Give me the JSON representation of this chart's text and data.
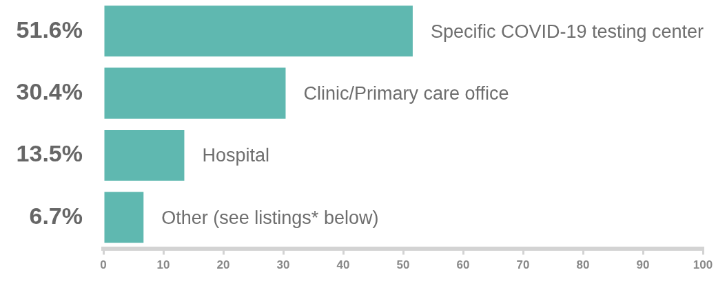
{
  "chart_data": {
    "type": "bar",
    "orientation": "horizontal",
    "categories": [
      "Specific COVID-19 testing center",
      "Clinic/Primary care office",
      "Hospital",
      "Other (see listings* below)"
    ],
    "values": [
      51.6,
      30.4,
      13.5,
      6.7
    ],
    "value_labels": [
      "51.6%",
      "30.4%",
      "13.5%",
      "6.7%"
    ],
    "color": "#5fb8b0",
    "xlim": [
      0,
      100
    ],
    "xticks": [
      0,
      10,
      20,
      30,
      40,
      50,
      60,
      70,
      80,
      90,
      100
    ],
    "grid": false,
    "legend": false
  }
}
